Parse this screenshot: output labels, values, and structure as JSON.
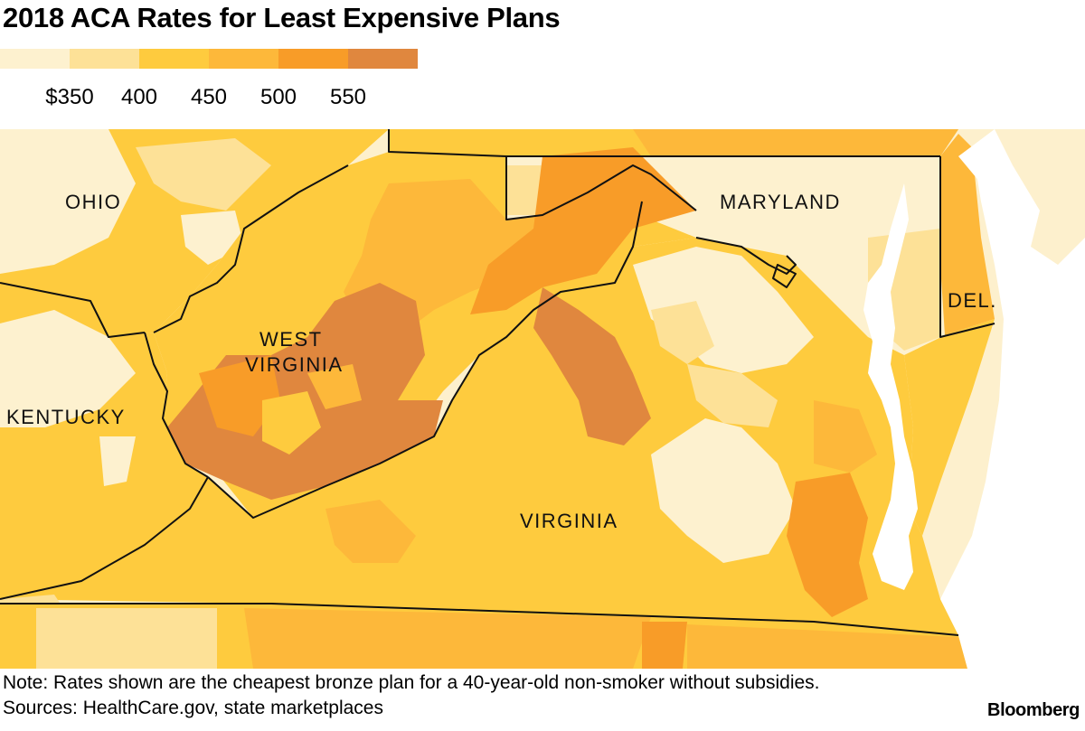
{
  "title": "2018 ACA Rates for Least Expensive Plans",
  "legend": {
    "colors": [
      "#fdf1cf",
      "#fde197",
      "#fecb3e",
      "#fdb83a",
      "#f89c28",
      "#e0873e"
    ],
    "labels": [
      "$350",
      "400",
      "450",
      "500",
      "550"
    ]
  },
  "map": {
    "colors": {
      "background": "#fdf0cd",
      "water": "#ffffff",
      "bin1": "#fdf1cf",
      "bin2": "#fde197",
      "bin3": "#fecb3e",
      "bin4": "#fdb83a",
      "bin5": "#f89c28",
      "bin6": "#e0873e",
      "border": "#111111"
    },
    "state_labels": {
      "ohio": "OHIO",
      "maryland": "MARYLAND",
      "west_virginia_1": "WEST",
      "west_virginia_2": "VIRGINIA",
      "kentucky": "KENTUCKY",
      "virginia": "VIRGINIA",
      "delaware": "DEL."
    }
  },
  "note": "Note: Rates shown are the cheapest bronze plan for a 40-year-old non-smoker without subsidies.",
  "sources": "Sources: HealthCare.gov, state marketplaces",
  "brand": "Bloomberg"
}
